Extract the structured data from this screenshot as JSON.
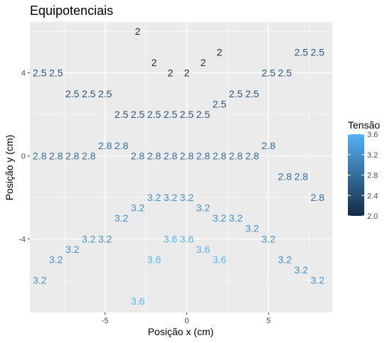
{
  "chart_data": {
    "type": "scatter",
    "title": "Equipotenciais",
    "xlabel": "Posição x (cm)",
    "ylabel": "Posição y (cm)",
    "xlim": [
      -9.6,
      8.9
    ],
    "ylim": [
      -7.55,
      6.45
    ],
    "x_ticks": [
      -5,
      0,
      5
    ],
    "y_ticks": [
      -4,
      0,
      4
    ],
    "grid": true,
    "background": "#ebebeb",
    "legend": {
      "title": "Tensão",
      "position": "right",
      "range": [
        2.0,
        3.6
      ],
      "ticks": [
        "3.6",
        "3.2",
        "2.8",
        "2.4",
        "2.0"
      ],
      "low_color": "#132b43",
      "high_color": "#56b1f7"
    },
    "points": [
      {
        "x": -3,
        "y": 6,
        "v": 2
      },
      {
        "x": -2,
        "y": 4.5,
        "v": 2
      },
      {
        "x": 1,
        "y": 4.5,
        "v": 2
      },
      {
        "x": 2,
        "y": 5,
        "v": 2
      },
      {
        "x": -1,
        "y": 4,
        "v": 2
      },
      {
        "x": 0,
        "y": 4,
        "v": 2
      },
      {
        "x": -9,
        "y": 4,
        "v": 2.5
      },
      {
        "x": -8,
        "y": 4,
        "v": 2.5
      },
      {
        "x": 7,
        "y": 5,
        "v": 2.5
      },
      {
        "x": 8,
        "y": 5,
        "v": 2.5
      },
      {
        "x": 5,
        "y": 4,
        "v": 2.5
      },
      {
        "x": 6,
        "y": 4,
        "v": 2.5
      },
      {
        "x": -7,
        "y": 3,
        "v": 2.5
      },
      {
        "x": -6,
        "y": 3,
        "v": 2.5
      },
      {
        "x": -5,
        "y": 3,
        "v": 2.5
      },
      {
        "x": 3,
        "y": 3,
        "v": 2.5
      },
      {
        "x": 4,
        "y": 3,
        "v": 2.5
      },
      {
        "x": 2,
        "y": 2.5,
        "v": 2.5
      },
      {
        "x": -4,
        "y": 2,
        "v": 2.5
      },
      {
        "x": -3,
        "y": 2,
        "v": 2.5
      },
      {
        "x": -2,
        "y": 2,
        "v": 2.5
      },
      {
        "x": -1,
        "y": 2,
        "v": 2.5
      },
      {
        "x": 0,
        "y": 2,
        "v": 2.5
      },
      {
        "x": 1,
        "y": 2,
        "v": 2.5
      },
      {
        "x": -5,
        "y": 0.5,
        "v": 2.8
      },
      {
        "x": -4,
        "y": 0.5,
        "v": 2.8
      },
      {
        "x": 5,
        "y": 0.5,
        "v": 2.8
      },
      {
        "x": -9,
        "y": 0,
        "v": 2.8
      },
      {
        "x": -8,
        "y": 0,
        "v": 2.8
      },
      {
        "x": -7,
        "y": 0,
        "v": 2.8
      },
      {
        "x": -6,
        "y": 0,
        "v": 2.8
      },
      {
        "x": -3,
        "y": 0,
        "v": 2.8
      },
      {
        "x": -2,
        "y": 0,
        "v": 2.8
      },
      {
        "x": -1,
        "y": 0,
        "v": 2.8
      },
      {
        "x": 0,
        "y": 0,
        "v": 2.8
      },
      {
        "x": 1,
        "y": 0,
        "v": 2.8
      },
      {
        "x": 2,
        "y": 0,
        "v": 2.8
      },
      {
        "x": 3,
        "y": 0,
        "v": 2.8
      },
      {
        "x": 4,
        "y": 0,
        "v": 2.8
      },
      {
        "x": 6,
        "y": -1,
        "v": 2.8
      },
      {
        "x": 7,
        "y": -1,
        "v": 2.8
      },
      {
        "x": 8,
        "y": -2,
        "v": 2.8
      },
      {
        "x": -2,
        "y": -2,
        "v": 3.2
      },
      {
        "x": -1,
        "y": -2,
        "v": 3.2
      },
      {
        "x": 0,
        "y": -2,
        "v": 3.2
      },
      {
        "x": -3,
        "y": -2.5,
        "v": 3.2
      },
      {
        "x": 1,
        "y": -2.5,
        "v": 3.2
      },
      {
        "x": -4,
        "y": -3,
        "v": 3.2
      },
      {
        "x": 2,
        "y": -3,
        "v": 3.2
      },
      {
        "x": 3,
        "y": -3,
        "v": 3.2
      },
      {
        "x": 4,
        "y": -3.5,
        "v": 3.2
      },
      {
        "x": -6,
        "y": -4,
        "v": 3.2
      },
      {
        "x": -5,
        "y": -4,
        "v": 3.2
      },
      {
        "x": 5,
        "y": -4,
        "v": 3.2
      },
      {
        "x": -7,
        "y": -4.5,
        "v": 3.2
      },
      {
        "x": -8,
        "y": -5,
        "v": 3.2
      },
      {
        "x": 6,
        "y": -5,
        "v": 3.2
      },
      {
        "x": 7,
        "y": -5.5,
        "v": 3.2
      },
      {
        "x": -9,
        "y": -6,
        "v": 3.2
      },
      {
        "x": 8,
        "y": -6,
        "v": 3.2
      },
      {
        "x": -1,
        "y": -4,
        "v": 3.6
      },
      {
        "x": 0,
        "y": -4,
        "v": 3.6
      },
      {
        "x": 1,
        "y": -4.5,
        "v": 3.6
      },
      {
        "x": -2,
        "y": -5,
        "v": 3.6
      },
      {
        "x": 2,
        "y": -5,
        "v": 3.6
      },
      {
        "x": -3,
        "y": -7,
        "v": 3.6
      }
    ]
  }
}
